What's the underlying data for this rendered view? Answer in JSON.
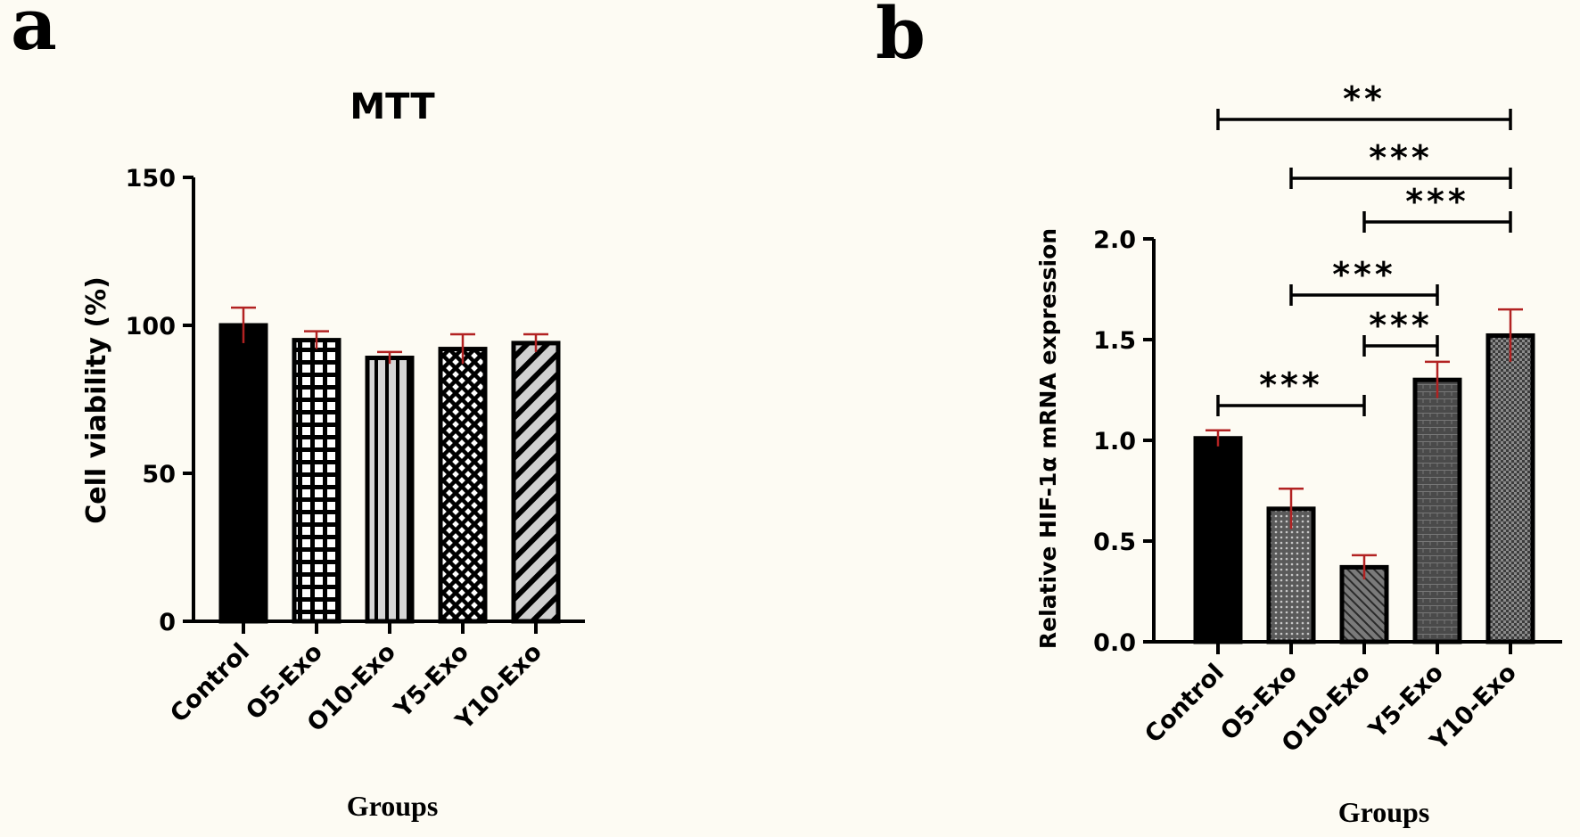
{
  "panels": {
    "a": "a",
    "b": "b"
  },
  "chart_data": [
    {
      "type": "bar",
      "title": "MTT",
      "ylabel": "Cell viability (%)",
      "xlabel": "Groups",
      "categories": [
        "Control",
        "O5-Exo",
        "O10-Exo",
        "Y5-Exo",
        "Y10-Exo"
      ],
      "values": [
        100,
        95,
        89,
        92,
        94
      ],
      "errors": [
        6,
        3,
        2,
        5,
        3
      ],
      "ylim": [
        0,
        150
      ],
      "yticks": [
        0,
        50,
        100,
        150
      ],
      "patterns": [
        "solid",
        "grid",
        "vertical-stripes",
        "crosshatch",
        "diagonal-stripes"
      ],
      "error_color": "#b22222"
    },
    {
      "type": "bar",
      "title": "",
      "ylabel": "Relative HIF-1α mRNA expression",
      "xlabel": "Groups",
      "categories": [
        "Control",
        "O5-Exo",
        "O10-Exo",
        "Y5-Exo",
        "Y10-Exo"
      ],
      "values": [
        1.01,
        0.66,
        0.37,
        1.3,
        1.52
      ],
      "errors": [
        0.04,
        0.1,
        0.06,
        0.09,
        0.13
      ],
      "ylim": [
        0,
        2.0
      ],
      "yticks": [
        "0.0",
        "0.5",
        "1.0",
        "1.5",
        "2.0"
      ],
      "patterns": [
        "solid",
        "dots",
        "diagonal-fine",
        "brick",
        "checker"
      ],
      "error_color": "#b22222",
      "significance": [
        {
          "from": 0,
          "to": 4,
          "label": "**"
        },
        {
          "from": 1,
          "to": 4,
          "label": "***"
        },
        {
          "from": 2,
          "to": 4,
          "label": "***"
        },
        {
          "from": 1,
          "to": 3,
          "label": "***"
        },
        {
          "from": 2,
          "to": 3,
          "label": "***"
        },
        {
          "from": 0,
          "to": 2,
          "label": "***"
        }
      ]
    }
  ]
}
